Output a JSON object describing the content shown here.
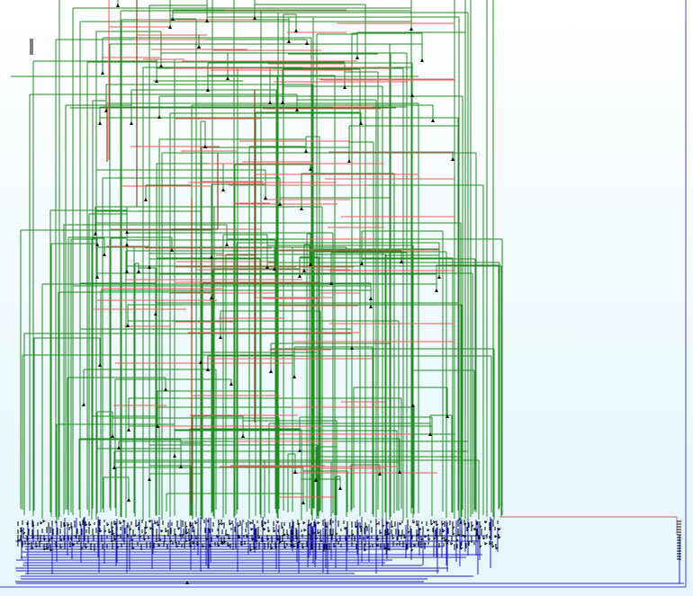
{
  "diagram": {
    "type": "hierarchical-graph",
    "description_visible_text": [],
    "colors": {
      "background_top": "#ffffff",
      "background_bottom": "#e4f6fc",
      "frame": "#4444cc",
      "edge_green": "#228b22",
      "edge_red": "#e85a5a",
      "edge_brown": "#8b4513",
      "edge_blue": "#2222bb",
      "node_label": "#000000"
    },
    "edge_groups": [
      "green-tree-edges",
      "red-cross-links",
      "brown-long-edges",
      "blue-leaf-edges"
    ]
  }
}
